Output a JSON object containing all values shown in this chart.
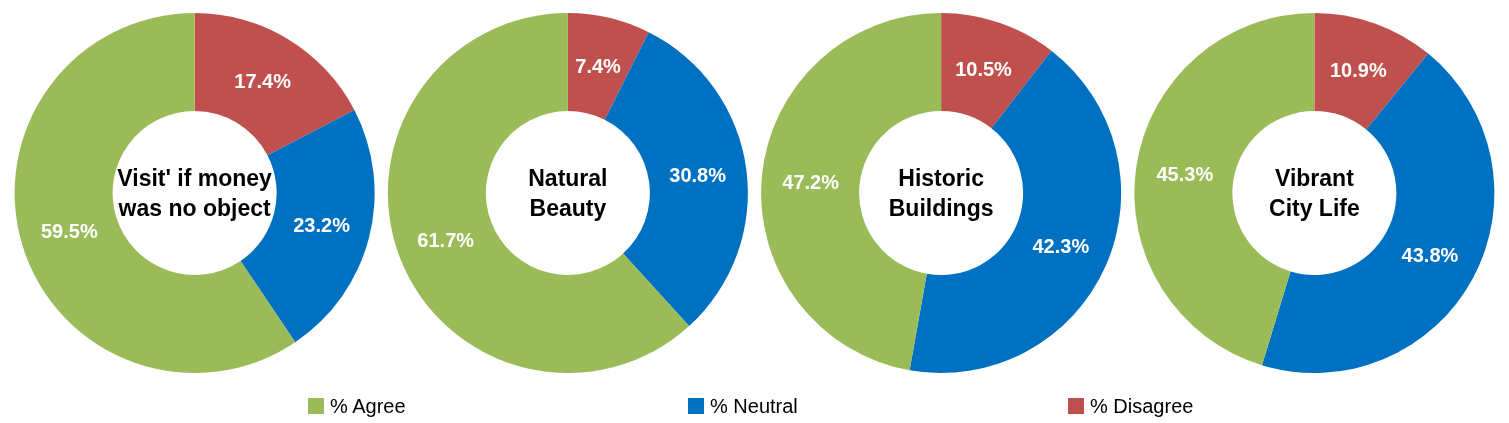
{
  "chart_data": [
    {
      "type": "donut",
      "title": "Visit' if money was no object",
      "categories": [
        "% Disagree",
        "% Neutral",
        "% Agree"
      ],
      "values": [
        17.4,
        23.2,
        59.5
      ],
      "value_labels": [
        "17.4%",
        "23.2%",
        "59.5%"
      ],
      "colors": [
        "#c0504d",
        "#0070c0",
        "#9bbb59"
      ],
      "legend": "bottom"
    },
    {
      "type": "donut",
      "title": "Natural Beauty",
      "categories": [
        null,
        null,
        null
      ],
      "values": [
        7.4,
        30.8,
        61.7
      ],
      "value_labels": [
        "7.4%",
        "30.8%",
        "61.7%"
      ],
      "colors": [
        "#c0504d",
        "#0070c0",
        "#9bbb59"
      ]
    },
    {
      "type": "donut",
      "title": "Historic Buildings",
      "categories": [
        null,
        null,
        null
      ],
      "values": [
        10.5,
        42.3,
        47.2
      ],
      "value_labels": [
        "10.5%",
        "42.3%",
        "47.2%"
      ],
      "colors": [
        "#c0504d",
        "#0070c0",
        "#9bbb59"
      ]
    },
    {
      "type": "donut",
      "title": "Vibrant City Life",
      "categories": [
        null,
        null,
        null
      ],
      "values": [
        10.9,
        43.8,
        45.3
      ],
      "value_labels": [
        "10.9%",
        "43.8%",
        "45.3%"
      ],
      "colors": [
        "#c0504d",
        "#0070c0",
        "#9bbb59"
      ]
    }
  ]
}
